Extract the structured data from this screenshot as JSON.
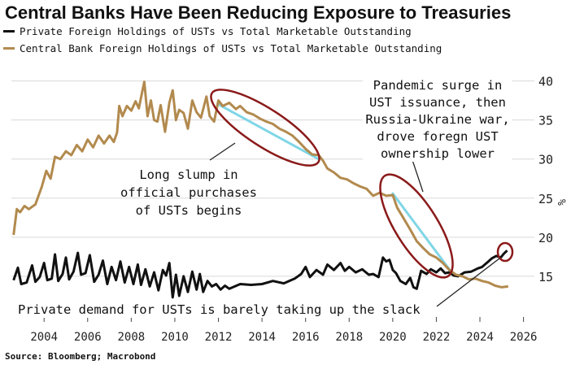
{
  "title": "Central Banks Have Been Reducing Exposure to Treasuries",
  "source": "Source: Bloomberg; Macrobond",
  "colors": {
    "private": "#111111",
    "central": "#b28a4e",
    "ellipse": "#8b1a1a",
    "highlight": "#7fd6e6"
  },
  "chart_data": {
    "type": "line",
    "title": "Central Banks Have Been Reducing Exposure to Treasuries",
    "xlabel": "",
    "ylabel": "%",
    "xlim": [
      2002.5,
      2026.5
    ],
    "ylim": [
      10,
      41
    ],
    "x_ticks": [
      2004,
      2006,
      2008,
      2010,
      2012,
      2014,
      2016,
      2018,
      2020,
      2022,
      2024,
      2026
    ],
    "y_ticks": [
      15,
      20,
      25,
      30,
      35,
      40
    ],
    "y_axis_side": "right",
    "grid": "horizontal",
    "legend_position": "top-left",
    "series": [
      {
        "name": "Private Foreign Holdings of USTs vs Total Marketable Outstanding",
        "color": "#111111",
        "points": [
          [
            2002.6,
            14.5
          ],
          [
            2002.8,
            16.1
          ],
          [
            2002.95,
            14.0
          ],
          [
            2003.2,
            14.2
          ],
          [
            2003.45,
            16.4
          ],
          [
            2003.6,
            14.3
          ],
          [
            2003.8,
            14.9
          ],
          [
            2004.0,
            16.7
          ],
          [
            2004.15,
            14.5
          ],
          [
            2004.35,
            14.7
          ],
          [
            2004.5,
            17.8
          ],
          [
            2004.65,
            14.4
          ],
          [
            2004.85,
            15.3
          ],
          [
            2005.0,
            17.4
          ],
          [
            2005.15,
            14.6
          ],
          [
            2005.35,
            15.6
          ],
          [
            2005.55,
            18.0
          ],
          [
            2005.7,
            15.2
          ],
          [
            2005.9,
            15.4
          ],
          [
            2006.1,
            17.7
          ],
          [
            2006.3,
            14.3
          ],
          [
            2006.5,
            15.2
          ],
          [
            2006.7,
            17.0
          ],
          [
            2006.9,
            14.0
          ],
          [
            2007.1,
            16.2
          ],
          [
            2007.3,
            14.5
          ],
          [
            2007.5,
            16.9
          ],
          [
            2007.7,
            14.2
          ],
          [
            2007.9,
            16.2
          ],
          [
            2008.1,
            14.0
          ],
          [
            2008.3,
            16.5
          ],
          [
            2008.45,
            13.9
          ],
          [
            2008.65,
            15.9
          ],
          [
            2008.85,
            13.7
          ],
          [
            2009.05,
            15.5
          ],
          [
            2009.25,
            13.2
          ],
          [
            2009.45,
            15.8
          ],
          [
            2009.6,
            15.1
          ],
          [
            2009.75,
            16.7
          ],
          [
            2009.9,
            12.3
          ],
          [
            2010.05,
            15.2
          ],
          [
            2010.2,
            12.5
          ],
          [
            2010.4,
            15.0
          ],
          [
            2010.6,
            13.0
          ],
          [
            2010.8,
            15.6
          ],
          [
            2011.0,
            13.3
          ],
          [
            2011.15,
            15.3
          ],
          [
            2011.3,
            13.0
          ],
          [
            2011.5,
            14.4
          ],
          [
            2011.7,
            13.7
          ],
          [
            2011.9,
            14.0
          ],
          [
            2012.1,
            13.3
          ],
          [
            2012.3,
            13.8
          ],
          [
            2012.5,
            13.4
          ],
          [
            2013.0,
            14.0
          ],
          [
            2013.5,
            13.9
          ],
          [
            2014.0,
            14.0
          ],
          [
            2014.5,
            14.4
          ],
          [
            2015.0,
            14.1
          ],
          [
            2015.5,
            14.7
          ],
          [
            2015.8,
            15.3
          ],
          [
            2016.0,
            16.2
          ],
          [
            2016.2,
            14.9
          ],
          [
            2016.5,
            15.8
          ],
          [
            2016.8,
            15.2
          ],
          [
            2017.0,
            16.5
          ],
          [
            2017.3,
            15.8
          ],
          [
            2017.6,
            16.7
          ],
          [
            2017.8,
            15.7
          ],
          [
            2018.0,
            16.2
          ],
          [
            2018.3,
            15.5
          ],
          [
            2018.6,
            15.9
          ],
          [
            2018.9,
            15.2
          ],
          [
            2019.1,
            15.3
          ],
          [
            2019.35,
            14.9
          ],
          [
            2019.55,
            17.4
          ],
          [
            2019.7,
            16.9
          ],
          [
            2019.85,
            17.1
          ],
          [
            2020.0,
            15.8
          ],
          [
            2020.15,
            15.4
          ],
          [
            2020.35,
            14.4
          ],
          [
            2020.6,
            14.0
          ],
          [
            2020.8,
            14.8
          ],
          [
            2020.95,
            13.6
          ],
          [
            2021.1,
            13.4
          ],
          [
            2021.3,
            15.7
          ],
          [
            2021.55,
            15.3
          ],
          [
            2021.75,
            15.9
          ],
          [
            2022.0,
            15.5
          ],
          [
            2022.2,
            16.0
          ],
          [
            2022.4,
            15.4
          ],
          [
            2022.6,
            15.5
          ],
          [
            2022.8,
            15.1
          ],
          [
            2023.0,
            15.0
          ],
          [
            2023.3,
            15.5
          ],
          [
            2023.6,
            15.6
          ],
          [
            2023.9,
            16.0
          ],
          [
            2024.1,
            16.2
          ],
          [
            2024.35,
            16.8
          ],
          [
            2024.55,
            17.3
          ],
          [
            2024.75,
            17.6
          ],
          [
            2024.95,
            17.4
          ],
          [
            2025.1,
            17.9
          ],
          [
            2025.25,
            18.3
          ]
        ]
      },
      {
        "name": "Central Bank Foreign Holdings of USTs vs Total Marketable Outstanding",
        "color": "#b28a4e",
        "points": [
          [
            2002.6,
            20.3
          ],
          [
            2002.75,
            23.6
          ],
          [
            2002.9,
            23.2
          ],
          [
            2003.1,
            24.0
          ],
          [
            2003.3,
            23.6
          ],
          [
            2003.6,
            24.2
          ],
          [
            2003.9,
            26.5
          ],
          [
            2004.1,
            28.5
          ],
          [
            2004.3,
            27.5
          ],
          [
            2004.5,
            30.3
          ],
          [
            2004.75,
            30.0
          ],
          [
            2005.0,
            31.0
          ],
          [
            2005.25,
            30.5
          ],
          [
            2005.5,
            31.8
          ],
          [
            2005.75,
            31.0
          ],
          [
            2006.0,
            32.5
          ],
          [
            2006.25,
            31.5
          ],
          [
            2006.5,
            33.0
          ],
          [
            2006.75,
            32.0
          ],
          [
            2007.0,
            33.0
          ],
          [
            2007.2,
            32.2
          ],
          [
            2007.35,
            33.4
          ],
          [
            2007.45,
            36.8
          ],
          [
            2007.6,
            35.5
          ],
          [
            2007.8,
            36.8
          ],
          [
            2008.0,
            36.2
          ],
          [
            2008.2,
            37.4
          ],
          [
            2008.35,
            36.5
          ],
          [
            2008.5,
            38.6
          ],
          [
            2008.6,
            39.9
          ],
          [
            2008.75,
            35.5
          ],
          [
            2008.9,
            37.5
          ],
          [
            2009.05,
            35.0
          ],
          [
            2009.2,
            34.8
          ],
          [
            2009.35,
            36.9
          ],
          [
            2009.55,
            33.5
          ],
          [
            2009.75,
            37.2
          ],
          [
            2009.9,
            38.8
          ],
          [
            2010.05,
            35.0
          ],
          [
            2010.2,
            36.3
          ],
          [
            2010.4,
            35.9
          ],
          [
            2010.6,
            33.9
          ],
          [
            2010.8,
            37.5
          ],
          [
            2011.0,
            36.0
          ],
          [
            2011.2,
            35.3
          ],
          [
            2011.45,
            38.0
          ],
          [
            2011.6,
            35.5
          ],
          [
            2011.8,
            34.8
          ],
          [
            2012.0,
            37.5
          ],
          [
            2012.2,
            36.8
          ],
          [
            2012.5,
            37.2
          ],
          [
            2012.8,
            36.4
          ],
          [
            2013.0,
            36.8
          ],
          [
            2013.3,
            36.0
          ],
          [
            2013.6,
            35.7
          ],
          [
            2013.9,
            35.2
          ],
          [
            2014.2,
            34.8
          ],
          [
            2014.5,
            34.5
          ],
          [
            2014.8,
            33.9
          ],
          [
            2015.1,
            33.5
          ],
          [
            2015.4,
            33.0
          ],
          [
            2015.7,
            32.2
          ],
          [
            2016.0,
            31.3
          ],
          [
            2016.3,
            30.6
          ],
          [
            2016.6,
            30.5
          ],
          [
            2016.8,
            29.8
          ],
          [
            2017.0,
            28.8
          ],
          [
            2017.3,
            28.3
          ],
          [
            2017.6,
            27.6
          ],
          [
            2017.9,
            27.4
          ],
          [
            2018.2,
            26.9
          ],
          [
            2018.5,
            26.5
          ],
          [
            2018.8,
            26.2
          ],
          [
            2019.1,
            25.3
          ],
          [
            2019.4,
            25.7
          ],
          [
            2019.7,
            25.3
          ],
          [
            2020.0,
            25.4
          ],
          [
            2020.2,
            23.8
          ],
          [
            2020.5,
            22.4
          ],
          [
            2020.8,
            21.0
          ],
          [
            2021.1,
            19.5
          ],
          [
            2021.4,
            18.6
          ],
          [
            2021.7,
            17.8
          ],
          [
            2022.0,
            17.4
          ],
          [
            2022.3,
            16.7
          ],
          [
            2022.6,
            15.8
          ],
          [
            2022.9,
            15.2
          ],
          [
            2023.2,
            15.0
          ],
          [
            2023.5,
            14.6
          ],
          [
            2023.8,
            14.7
          ],
          [
            2024.1,
            14.4
          ],
          [
            2024.4,
            14.2
          ],
          [
            2024.7,
            13.8
          ],
          [
            2025.0,
            13.6
          ],
          [
            2025.3,
            13.7
          ]
        ]
      }
    ],
    "annotations": [
      {
        "text": [
          "Long slump in",
          "official purchases",
          "of USTs begins"
        ]
      },
      {
        "text": [
          "Pandemic surge in",
          "UST issuance, then",
          "Russia-Ukraine war,",
          "drove foregn UST",
          "ownership lower"
        ]
      },
      {
        "text": [
          "Private demand for USTs is barely taking up the slack"
        ]
      }
    ]
  }
}
